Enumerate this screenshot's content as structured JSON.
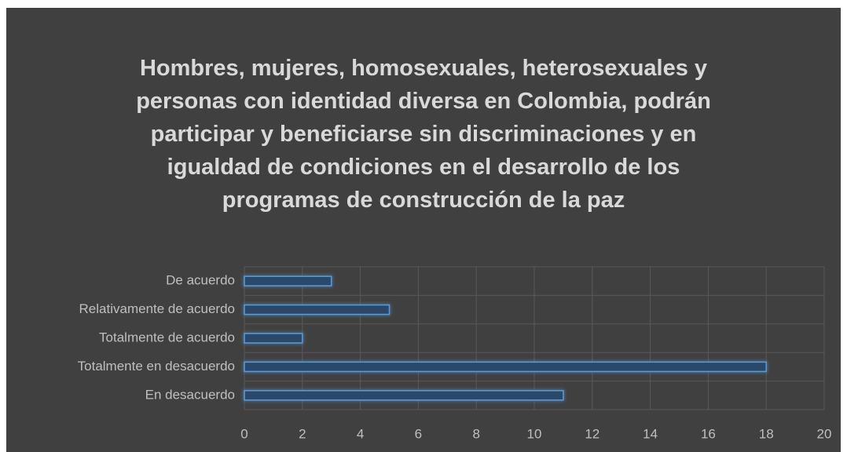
{
  "chart_data": {
    "type": "bar",
    "orientation": "horizontal",
    "title": "Hombres, mujeres, homosexuales, heterosexuales y personas con identidad diversa en Colombia, podrán participar y beneficiarse sin discriminaciones y en igualdad de condiciones en el desarrollo de los programas de construcción de la paz",
    "categories": [
      "De acuerdo",
      "Relativamente de acuerdo",
      "Totalmente de acuerdo",
      "Totalmente en desacuerdo",
      "En desacuerdo"
    ],
    "values": [
      3,
      5,
      2,
      18,
      11
    ],
    "color": "#5b9bd5",
    "xlim": [
      0,
      20
    ],
    "xticks": [
      0,
      2,
      4,
      6,
      8,
      10,
      12,
      14,
      16,
      18,
      20
    ],
    "grid": true
  }
}
